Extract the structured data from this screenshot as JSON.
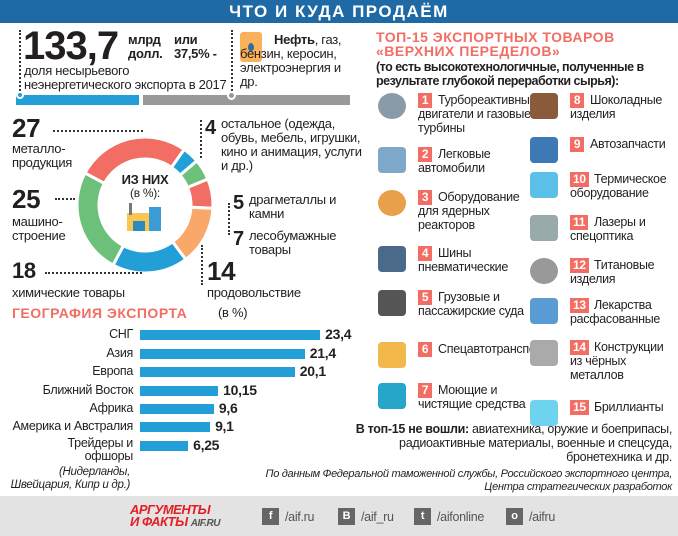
{
  "header": {
    "title": "ЧТО И КУДА ПРОДАЁМ"
  },
  "summary": {
    "value": "133,7",
    "unit1": "млрд",
    "unit2": "долл.",
    "or": "или",
    "percent": "37,5% -",
    "desc": "доля несырьевого неэнергетического экспорта в 2017 г.",
    "oil_bold": "Нефть",
    "oil_rest": ", газ, бензин, керосин, электроэнергия и др.",
    "share_nonraw_percent": 37.5
  },
  "colors": {
    "red": "#f26d63",
    "green": "#6cc07a",
    "blue": "#229fd7",
    "orange": "#f9a86a",
    "header": "#1f6aa5"
  },
  "donut": {
    "center_title": "ИЗ НИХ",
    "center_sub": "(в %):",
    "center_icon": "factory-icon"
  },
  "chart_data": [
    {
      "type": "pie",
      "title": "ИЗ НИХ (в %):",
      "categories": [
        "металлопродукция",
        "остальное (одежда, обувь, мебель, игрушки, кино и анимация, услуги и др.)",
        "драгметаллы и камни",
        "лесобумажные товары",
        "продовольствие",
        "химические товары",
        "машиностроение"
      ],
      "values": [
        27,
        4,
        5,
        7,
        14,
        18,
        25
      ],
      "labels": [
        "металло-продукция",
        "остальное (одежда, обувь, мебель, игрушки, кино и анимация, услуги и др.)",
        "драгметаллы и камни",
        "лесобумажные товары",
        "продовольствие",
        "химические товары",
        "машино-строение"
      ],
      "value_labels": [
        "27",
        "4",
        "5",
        "7",
        "14",
        "18",
        "25"
      ],
      "colors": [
        "#f26d63",
        "#229fd7",
        "#6cc07a",
        "#f26d63",
        "#f9a86a",
        "#229fd7",
        "#6cc07a"
      ]
    },
    {
      "type": "bar",
      "orientation": "horizontal",
      "title": "ГЕОГРАФИЯ ЭКСПОРТА",
      "unit": "(в %)",
      "categories": [
        "СНГ",
        "Азия",
        "Европа",
        "Ближний Восток",
        "Африка",
        "Америка и Австралия",
        "Трейдеры и офшоры"
      ],
      "values": [
        23.4,
        21.4,
        20.1,
        10.15,
        9.6,
        9.1,
        6.25
      ],
      "value_labels": [
        "23,4",
        "21,4",
        "20,1",
        "10,15",
        "9,6",
        "9,1",
        "6,25"
      ],
      "note": "(Нидерланды, Швейцария, Кипр и др.)",
      "color": "#229fd7"
    }
  ],
  "top15": {
    "title1": "ТОП-15 ЭКСПОРТНЫХ ТОВАРОВ",
    "title2": "«ВЕРХНИХ ПЕРЕДЕЛОВ»",
    "subtitle": "(то есть высокотехнологичные, полученные в результате глубокой переработки сырья):",
    "items": [
      {
        "n": "1",
        "text": "Турбореактивные двигатели и газовые турбины",
        "icon": "gears-icon"
      },
      {
        "n": "2",
        "text": "Легковые автомобили",
        "icon": "car-icon"
      },
      {
        "n": "3",
        "text": "Оборудование для ядерных реакторов",
        "icon": "radiation-icon"
      },
      {
        "n": "4",
        "text": "Шины пневматические",
        "icon": "tires-icon"
      },
      {
        "n": "5",
        "text": "Грузовые и пассажирские суда",
        "icon": "ship-icon"
      },
      {
        "n": "6",
        "text": "Спецавтотранспорт",
        "icon": "bulldozer-icon"
      },
      {
        "n": "7",
        "text": "Моющие и чистящие средства",
        "icon": "soap-bottle-icon"
      },
      {
        "n": "8",
        "text": "Шоколадные изделия",
        "icon": "chocolate-icon"
      },
      {
        "n": "9",
        "text": "Автозапчасти",
        "icon": "tools-icon"
      },
      {
        "n": "10",
        "text": "Термическое оборудование",
        "icon": "thermometer-snowflake-icon"
      },
      {
        "n": "11",
        "text": "Лазеры и спецоптика",
        "icon": "laser-icon"
      },
      {
        "n": "12",
        "text": "Титановые изделия",
        "icon": "bearing-icon"
      },
      {
        "n": "13",
        "text": "Лекарства расфасованные",
        "icon": "medicine-icon"
      },
      {
        "n": "14",
        "text": "Конструкции из чёрных металлов",
        "icon": "steel-beam-icon"
      },
      {
        "n": "15",
        "text": "Бриллианты",
        "icon": "diamond-icon"
      }
    ],
    "excluded_bold": "В топ-15 не вошли:",
    "excluded": " авиатехника, оружие и боеприпасы, радиоактивные материалы, военные и спецсуда, бронетехника и др.",
    "source": "По данным Федеральной таможенной службы, Российского экспортного центра, Центра стратегических разработок"
  },
  "footer": {
    "logo1": "АРГУМЕНТЫ",
    "logo2": "И ФАКТЫ",
    "logo3": "AIF.RU",
    "social": [
      {
        "icon": "facebook-icon",
        "glyph": "f",
        "label": "/aif.ru"
      },
      {
        "icon": "vk-icon",
        "glyph": "B",
        "label": "/aif_ru"
      },
      {
        "icon": "twitter-icon",
        "glyph": "t",
        "label": "/aifonline"
      },
      {
        "icon": "odnoklassniki-icon",
        "glyph": "o",
        "label": "/aifru"
      }
    ]
  }
}
